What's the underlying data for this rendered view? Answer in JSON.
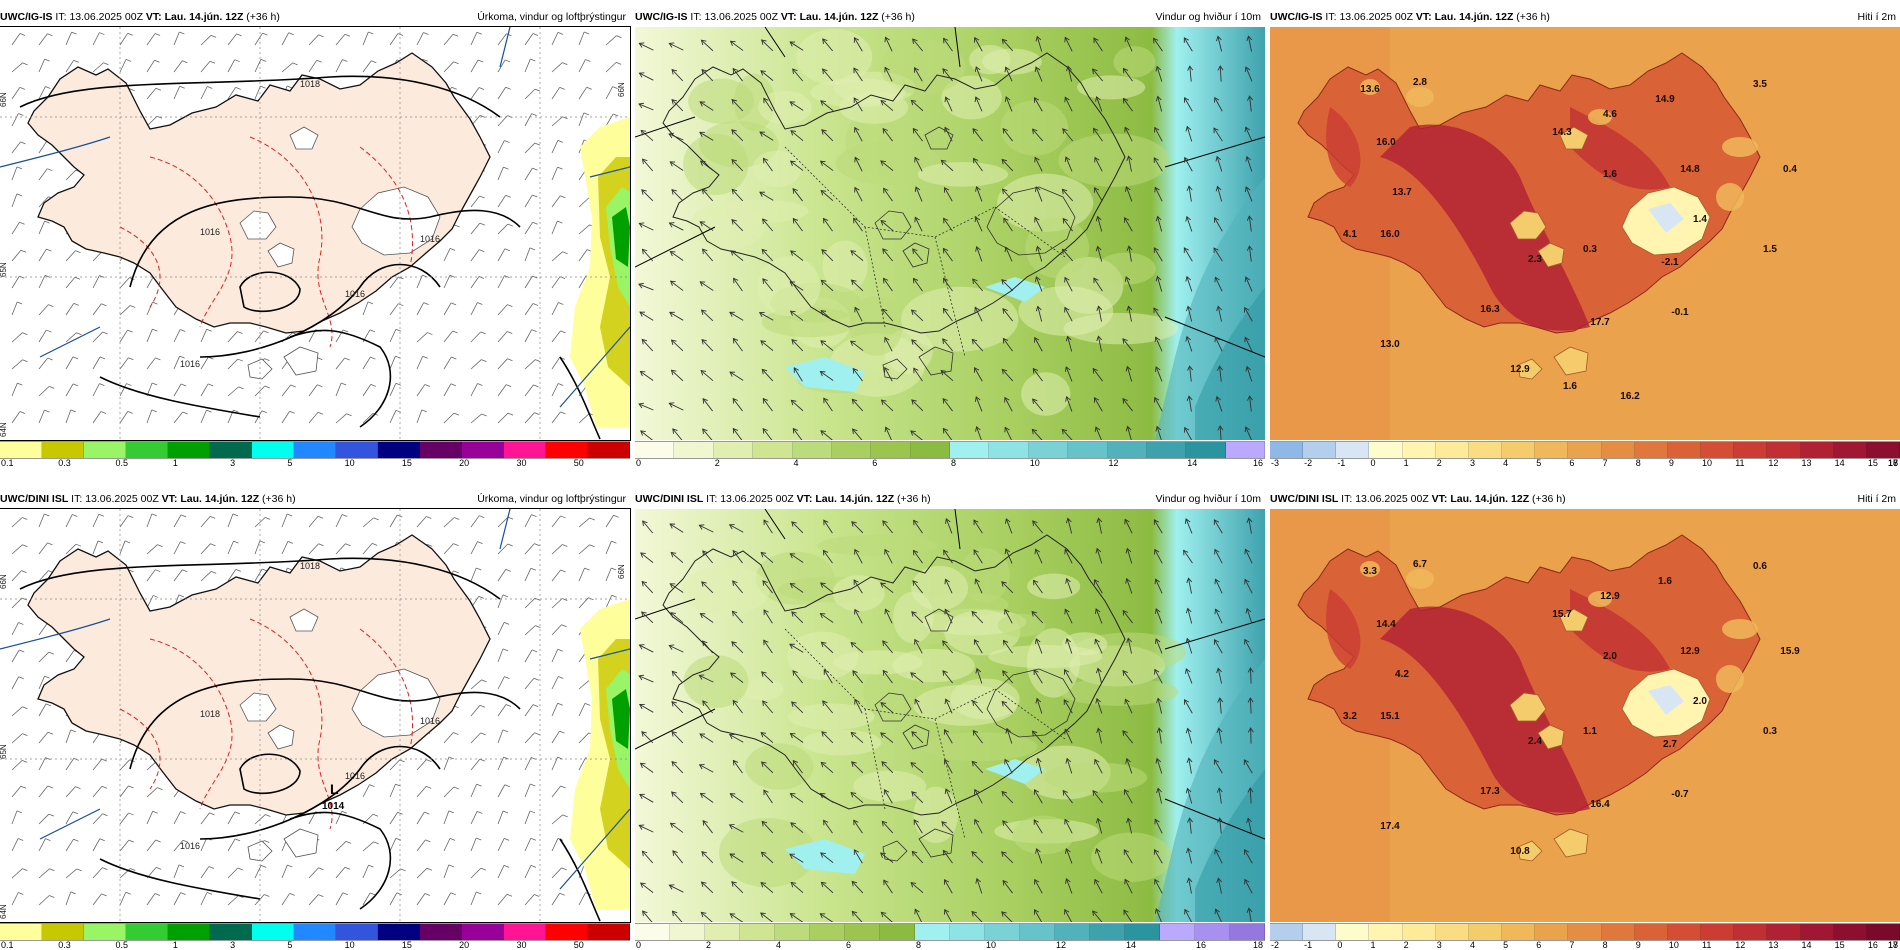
{
  "rows": [
    {
      "model": "UWC/IG-IS",
      "panels": [
        {
          "it_label": "IT:",
          "it_value": "13.06.2025 00Z",
          "vt_label": "VT:",
          "vt_value": "Lau. 14.jún. 12Z",
          "offset": "(+36 h)",
          "title": "Úrkoma, vindur og loftþrýstingur",
          "type": "precip",
          "legend_colors": [
            "#fefe9a",
            "#c8c800",
            "#99f466",
            "#33cc33",
            "#00a000",
            "#006a4e",
            "#00ffee",
            "#2288ff",
            "#3355dd",
            "#000080",
            "#660066",
            "#990099",
            "#ff1493",
            "#ff0000",
            "#cc0000"
          ],
          "legend_ticks": [
            "0.1",
            "0.3",
            "0.5",
            "1",
            "3",
            "5",
            "10",
            "15",
            "20",
            "30",
            "50"
          ],
          "isobar_labels": [
            "1018",
            "1016",
            "1016",
            "1016",
            "1016"
          ],
          "lat_labels": [
            "66N",
            "65N",
            "64N",
            "66N"
          ]
        },
        {
          "it_label": "IT:",
          "it_value": "13.06.2025 00Z",
          "vt_label": "VT:",
          "vt_value": "Lau. 14.jún. 12Z",
          "offset": "(+36 h)",
          "title": "Vindur og hviður í 10m",
          "type": "wind",
          "legend_colors": [
            "#fbfde8",
            "#f0f7d0",
            "#e0efb0",
            "#cfe592",
            "#bcdb7a",
            "#a8cf60",
            "#9bc54e",
            "#8cbb42",
            "#9ff0ef",
            "#8ee3e4",
            "#7ad2d6",
            "#66c3c9",
            "#52b2bb",
            "#3ea2ad",
            "#2a949f",
            "#bba8ff"
          ],
          "legend_ticks": [
            "0",
            "2",
            "4",
            "6",
            "8",
            "10",
            "12",
            "14",
            "16"
          ]
        },
        {
          "it_label": "IT:",
          "it_value": "13.06.2025 00Z",
          "vt_label": "VT:",
          "vt_value": "Lau. 14.jún. 12Z",
          "offset": "(+36 h)",
          "title": "Hiti í 2m",
          "type": "temp",
          "legend_colors": [
            "#8fb8e6",
            "#b4cfee",
            "#d8e6f4",
            "#fffccc",
            "#fff5b0",
            "#feeb99",
            "#fadd82",
            "#f5cc6c",
            "#f0b85a",
            "#eba24c",
            "#e58d43",
            "#e0773c",
            "#da6237",
            "#d34e34",
            "#cb3d33",
            "#bf2f33",
            "#b02233",
            "#9f1733",
            "#8c0f30"
          ],
          "legend_ticks": [
            "-3",
            "-2",
            "-1",
            "0",
            "1",
            "2",
            "3",
            "4",
            "5",
            "6",
            "7",
            "8",
            "9",
            "10",
            "11",
            "12",
            "13",
            "14",
            "15",
            "16",
            "17",
            "18"
          ],
          "temp_labels": [
            "13.6",
            "2.8",
            "16.0",
            "13.7",
            "4.1",
            "16.0",
            "14.3",
            "4.6",
            "1.6",
            "14.9",
            "3.5",
            "14.8",
            "0.4",
            "1.4",
            "1.5",
            "2.3",
            "0.3",
            "-2.1",
            "16.3",
            "17.7",
            "12.9",
            "-0.1",
            "13.0",
            "1.6",
            "16.2"
          ]
        }
      ]
    },
    {
      "model": "UWC/DINI ISL",
      "panels": [
        {
          "it_label": "IT:",
          "it_value": "13.06.2025 00Z",
          "vt_label": "VT:",
          "vt_value": "Lau. 14.jún. 12Z",
          "offset": "(+36 h)",
          "title": "Úrkoma, vindur og loftþrýstingur",
          "type": "precip",
          "legend_colors": [
            "#fefe9a",
            "#c8c800",
            "#99f466",
            "#33cc33",
            "#00a000",
            "#006a4e",
            "#00ffee",
            "#2288ff",
            "#3355dd",
            "#000080",
            "#660066",
            "#990099",
            "#ff1493",
            "#ff0000",
            "#cc0000"
          ],
          "legend_ticks": [
            "0.1",
            "0.3",
            "0.5",
            "1",
            "3",
            "5",
            "10",
            "15",
            "20",
            "30",
            "50"
          ],
          "isobar_labels": [
            "1018",
            "1018",
            "1016",
            "1016",
            "1016"
          ],
          "low_label": "L",
          "low_value": "1014",
          "lat_labels": [
            "66N",
            "65N",
            "64N",
            "66N"
          ]
        },
        {
          "it_label": "IT:",
          "it_value": "13.06.2025 00Z",
          "vt_label": "VT:",
          "vt_value": "Lau. 14.jún. 12Z",
          "offset": "(+36 h)",
          "title": "Vindur og hviður í 10m",
          "type": "wind",
          "legend_colors": [
            "#fbfde8",
            "#f0f7d0",
            "#e0efb0",
            "#cfe592",
            "#bcdb7a",
            "#a8cf60",
            "#9bc54e",
            "#8cbb42",
            "#9ff0ef",
            "#8ee3e4",
            "#7ad2d6",
            "#66c3c9",
            "#52b2bb",
            "#3ea2ad",
            "#2a949f",
            "#bba8ff",
            "#a890f0",
            "#9478e0"
          ],
          "legend_ticks": [
            "0",
            "2",
            "4",
            "6",
            "8",
            "10",
            "12",
            "14",
            "16",
            "18"
          ]
        },
        {
          "it_label": "IT:",
          "it_value": "13.06.2025 00Z",
          "vt_label": "VT:",
          "vt_value": "Lau. 14.jún. 12Z",
          "offset": "(+36 h)",
          "title": "Hiti í 2m",
          "type": "temp",
          "legend_colors": [
            "#b4cfee",
            "#d8e6f4",
            "#fffccc",
            "#fff5b0",
            "#feeb99",
            "#fadd82",
            "#f5cc6c",
            "#f0b85a",
            "#eba24c",
            "#e58d43",
            "#e0773c",
            "#da6237",
            "#d34e34",
            "#cb3d33",
            "#bf2f33",
            "#b02233",
            "#9f1733",
            "#8c0f30",
            "#7a0a2c"
          ],
          "legend_ticks": [
            "-2",
            "-1",
            "0",
            "1",
            "2",
            "3",
            "4",
            "5",
            "6",
            "7",
            "8",
            "9",
            "10",
            "11",
            "12",
            "13",
            "14",
            "15",
            "16",
            "17",
            "18"
          ],
          "temp_labels": [
            "3.3",
            "6.7",
            "14.4",
            "4.2",
            "3.2",
            "15.1",
            "15.7",
            "12.9",
            "2.0",
            "1.6",
            "0.6",
            "12.9",
            "15.9",
            "2.0",
            "0.3",
            "2.4",
            "1.1",
            "2.7",
            "17.3",
            "16.4",
            "10.8",
            "-0.7",
            "17.4"
          ]
        }
      ]
    }
  ]
}
